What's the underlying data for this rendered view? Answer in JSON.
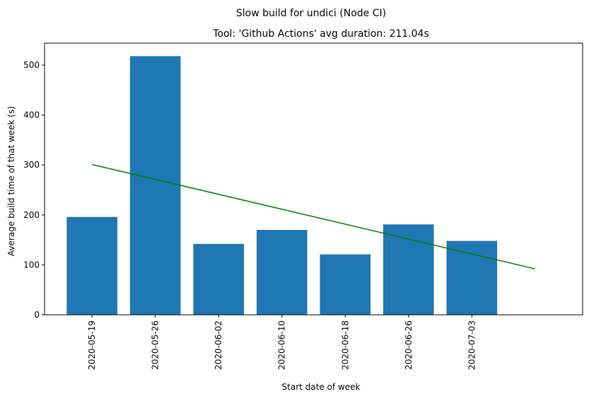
{
  "chart_data": {
    "type": "bar",
    "suptitle": "Slow build for undici (Node CI)",
    "title": "Tool: 'Github Actions' avg duration: 211.04s",
    "xlabel": "Start date of week",
    "ylabel": "Average build time of that week (s)",
    "categories": [
      "2020-05-19",
      "2020-05-26",
      "2020-06-02",
      "2020-06-10",
      "2020-06-18",
      "2020-06-26",
      "2020-07-03"
    ],
    "values": [
      196,
      518,
      142,
      170,
      121,
      181,
      148
    ],
    "bar_color": "#1f77b4",
    "trend_line": {
      "color": "#008000",
      "start_value": 301,
      "end_value": 92
    },
    "ylim": [
      0,
      544
    ],
    "yticks": [
      0,
      100,
      200,
      300,
      400,
      500
    ],
    "grid": false,
    "legend": "none"
  }
}
